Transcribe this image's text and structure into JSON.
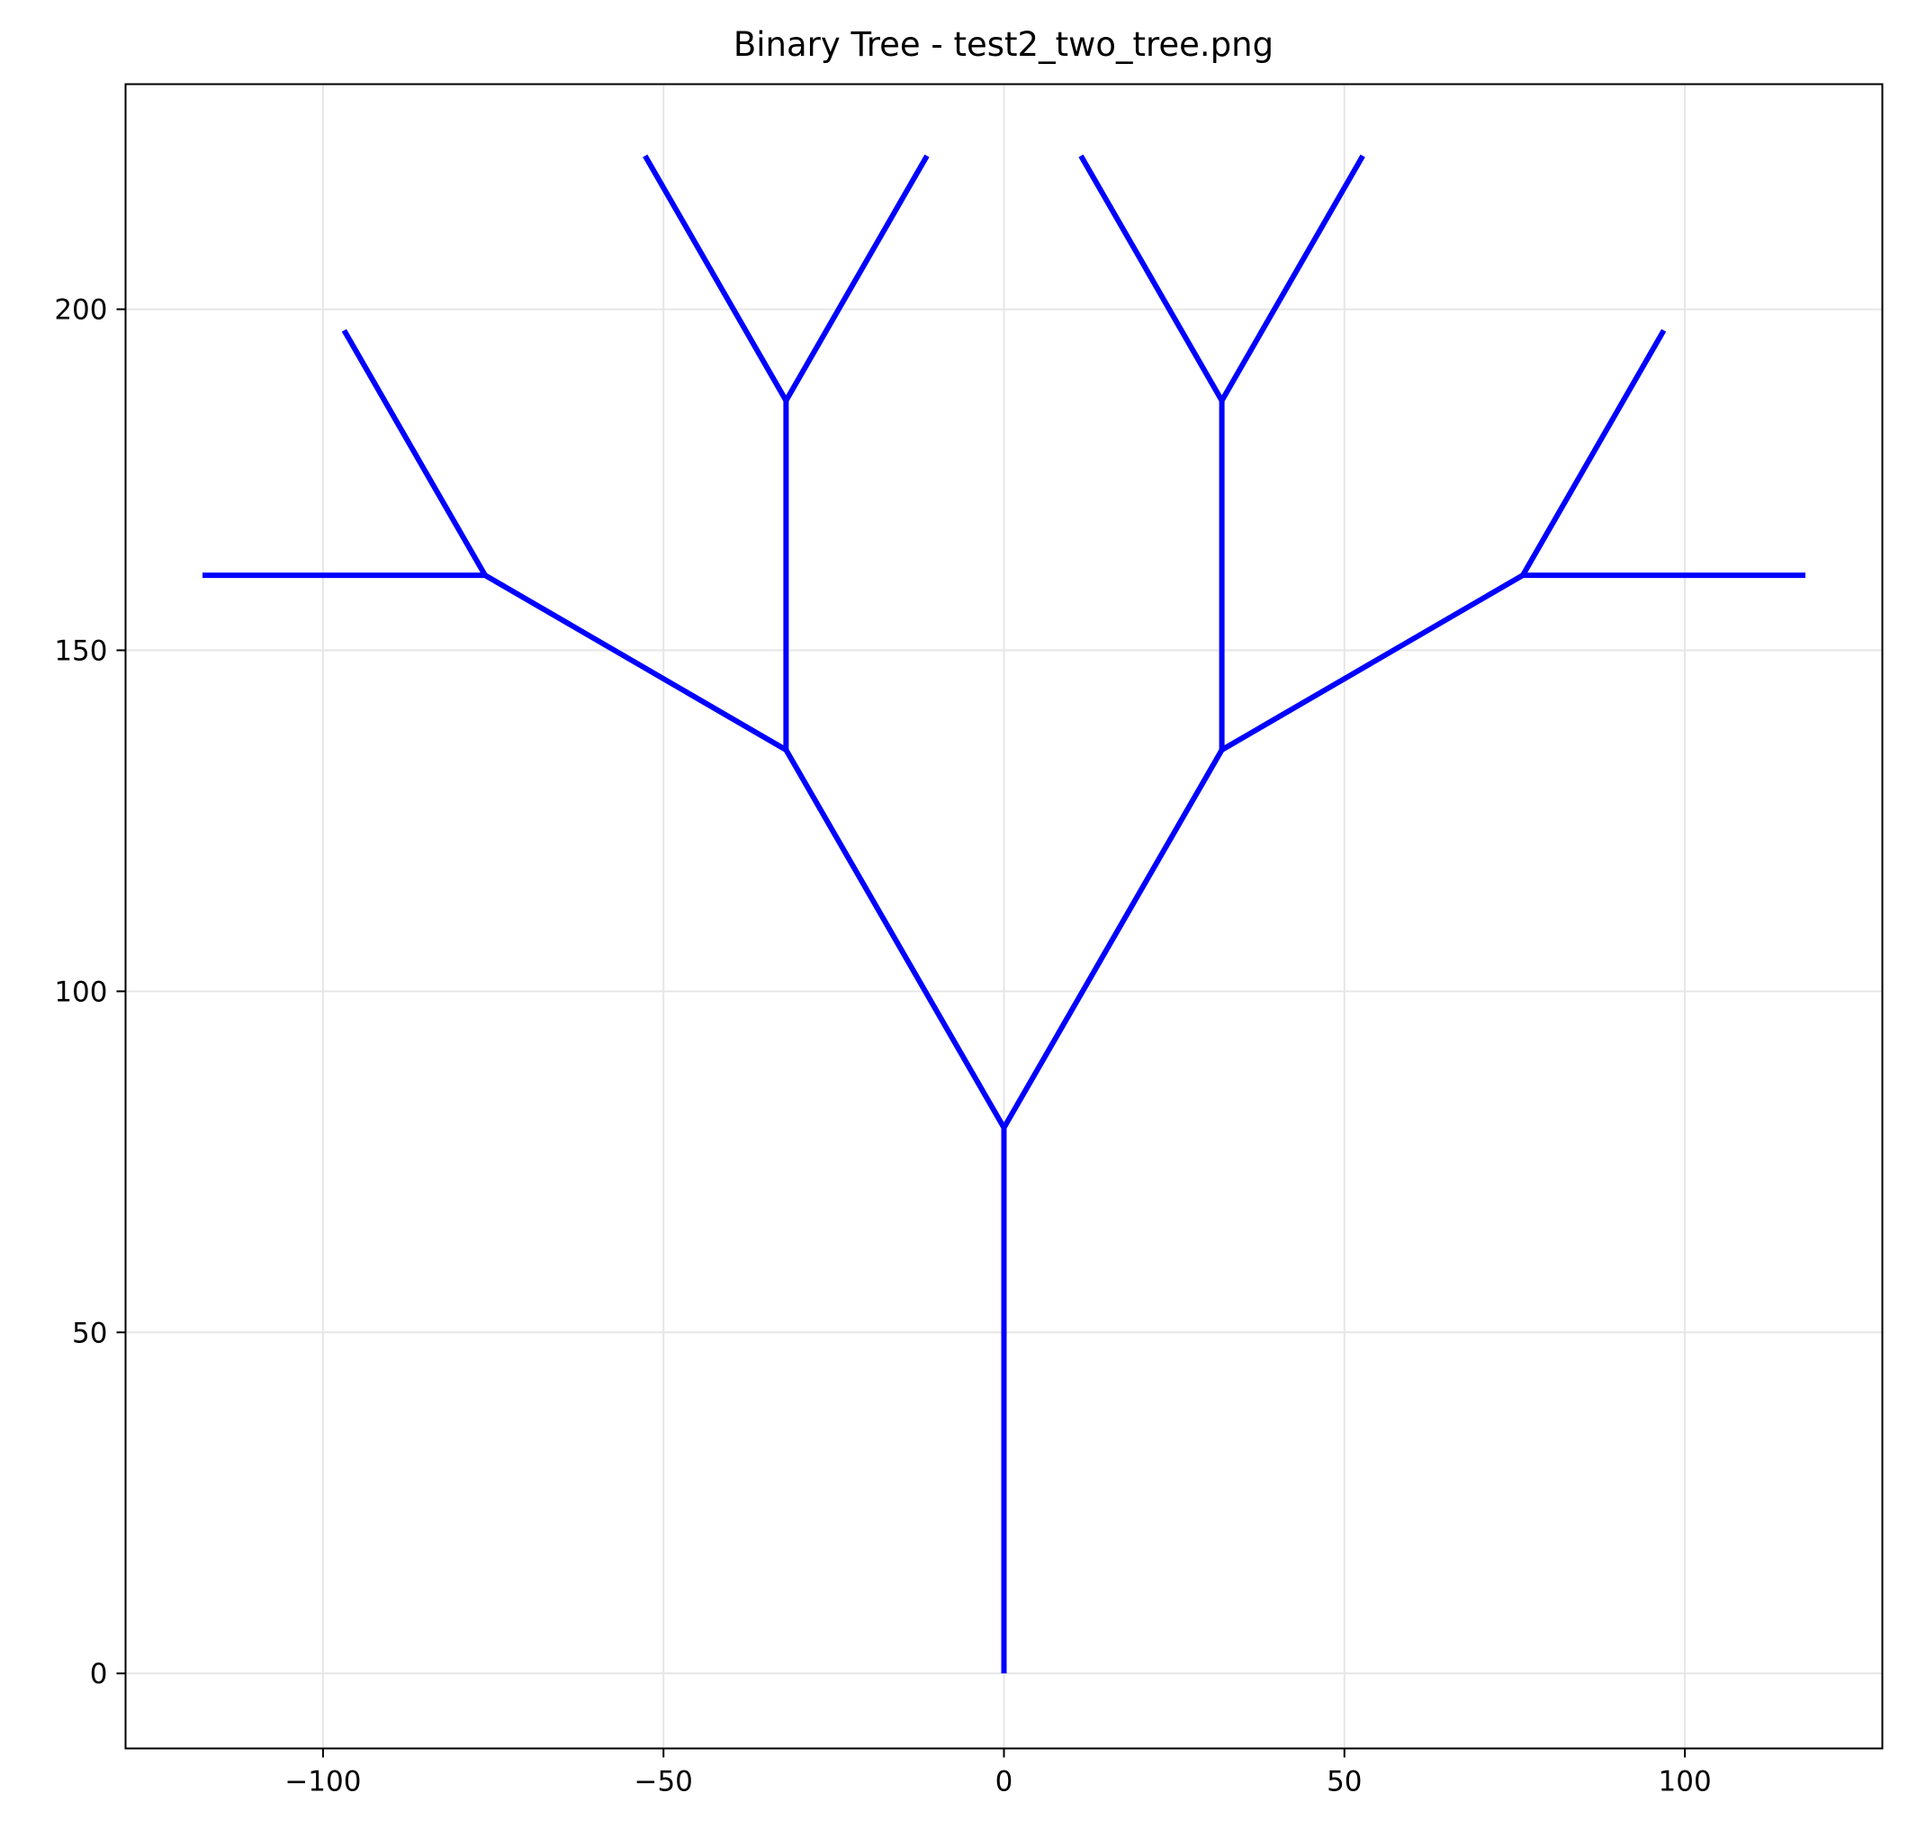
{
  "chart_data": {
    "type": "line",
    "title": "Binary Tree - test2_two_tree.png",
    "xlabel": "",
    "ylabel": "",
    "xlim": [
      -129,
      129
    ],
    "ylim": [
      -11,
      233
    ],
    "grid": true,
    "legend": "none",
    "x_ticks": [
      -100,
      -50,
      0,
      50,
      100
    ],
    "x_tick_labels": [
      "−100",
      "−50",
      "0",
      "50",
      "100"
    ],
    "y_ticks": [
      0,
      50,
      100,
      150,
      200
    ],
    "y_tick_labels": [
      "0",
      "50",
      "100",
      "150",
      "200"
    ],
    "line_color": "#0000ff",
    "grid_color": "#e6e6e6",
    "segments": [
      {
        "x": [
          0,
          0
        ],
        "y": [
          0,
          80
        ]
      },
      {
        "x": [
          0,
          -32
        ],
        "y": [
          80,
          135.4
        ]
      },
      {
        "x": [
          0,
          32
        ],
        "y": [
          80,
          135.4
        ]
      },
      {
        "x": [
          -32,
          -76.2
        ],
        "y": [
          135.4,
          161.0
        ]
      },
      {
        "x": [
          -32,
          -32
        ],
        "y": [
          135.4,
          186.6
        ]
      },
      {
        "x": [
          32,
          32
        ],
        "y": [
          135.4,
          186.6
        ]
      },
      {
        "x": [
          32,
          76.2
        ],
        "y": [
          135.4,
          161.0
        ]
      },
      {
        "x": [
          -76.2,
          -117.7
        ],
        "y": [
          161.0,
          161.0
        ]
      },
      {
        "x": [
          -76.2,
          -96.9
        ],
        "y": [
          161.0,
          196.9
        ]
      },
      {
        "x": [
          -32,
          -52.7
        ],
        "y": [
          186.6,
          222.5
        ]
      },
      {
        "x": [
          -32,
          -11.3
        ],
        "y": [
          186.6,
          222.5
        ]
      },
      {
        "x": [
          32,
          11.3
        ],
        "y": [
          186.6,
          222.5
        ]
      },
      {
        "x": [
          32,
          52.7
        ],
        "y": [
          186.6,
          222.5
        ]
      },
      {
        "x": [
          76.2,
          96.9
        ],
        "y": [
          161.0,
          196.9
        ]
      },
      {
        "x": [
          76.2,
          117.7
        ],
        "y": [
          161.0,
          161.0
        ]
      }
    ]
  }
}
